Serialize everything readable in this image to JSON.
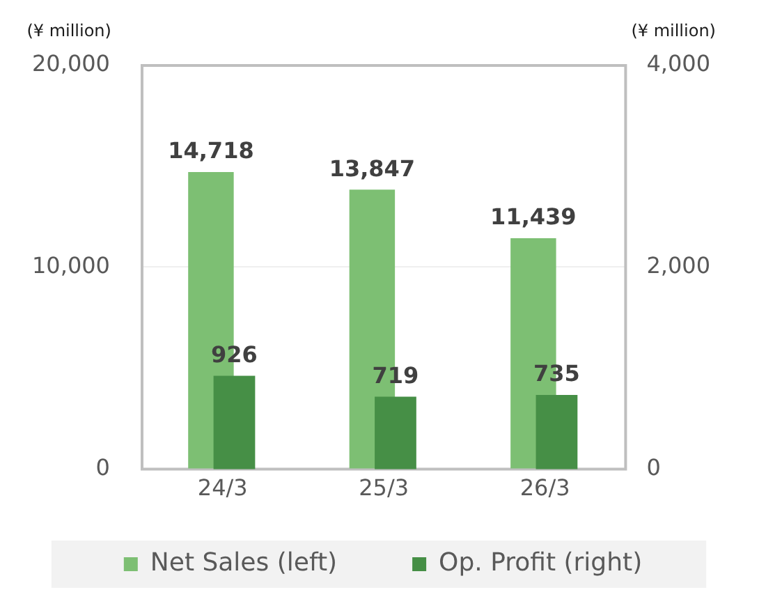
{
  "chart_data": {
    "type": "bar",
    "ylabel": "(¥ million)",
    "y2label": "(¥ million)",
    "categories": [
      "24/3",
      "25/3",
      "26/3"
    ],
    "series": [
      {
        "name": "Net Sales (left)",
        "color": "#7dbf73",
        "values": [
          14718,
          13847,
          11439
        ],
        "value_labels": [
          "14,718",
          "13,847",
          "11,439"
        ]
      },
      {
        "name": "Op. Profit (right)",
        "color": "#468f46",
        "values": [
          926,
          719,
          735
        ],
        "value_labels": [
          "926",
          "719",
          "735"
        ],
        "axis": "y2"
      }
    ],
    "ylim": [
      0,
      20000
    ],
    "yticks": [
      {
        "value": 0,
        "label": "0"
      },
      {
        "value": 10000,
        "label": "10,000"
      },
      {
        "value": 20000,
        "label": "20,000"
      }
    ],
    "y2lim": [
      0,
      4000
    ],
    "y2ticks": [
      {
        "value": 0,
        "label": "0"
      },
      {
        "value": 2000,
        "label": "2,000"
      },
      {
        "value": 4000,
        "label": "4,000"
      }
    ],
    "grid": "y",
    "legend": "bottom"
  }
}
